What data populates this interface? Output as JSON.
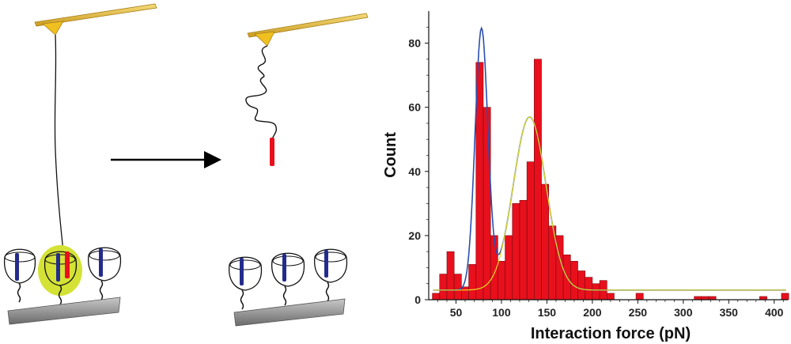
{
  "chart_data": {
    "type": "bar",
    "xlabel": "Interaction force (pN)",
    "ylabel": "Count",
    "xlim": [
      20,
      415
    ],
    "ylim": [
      0,
      90
    ],
    "x_ticks": [
      50,
      100,
      150,
      200,
      250,
      300,
      350,
      400
    ],
    "y_ticks": [
      0,
      20,
      40,
      60,
      80
    ],
    "bin_width": 8,
    "bars": [
      {
        "x": 24,
        "count": 2
      },
      {
        "x": 32,
        "count": 8
      },
      {
        "x": 40,
        "count": 15
      },
      {
        "x": 48,
        "count": 8
      },
      {
        "x": 56,
        "count": 4
      },
      {
        "x": 64,
        "count": 11
      },
      {
        "x": 72,
        "count": 74
      },
      {
        "x": 80,
        "count": 60
      },
      {
        "x": 88,
        "count": 20
      },
      {
        "x": 96,
        "count": 12
      },
      {
        "x": 104,
        "count": 20
      },
      {
        "x": 112,
        "count": 30
      },
      {
        "x": 120,
        "count": 31
      },
      {
        "x": 128,
        "count": 43
      },
      {
        "x": 136,
        "count": 75
      },
      {
        "x": 144,
        "count": 36
      },
      {
        "x": 152,
        "count": 23
      },
      {
        "x": 160,
        "count": 20
      },
      {
        "x": 168,
        "count": 14
      },
      {
        "x": 176,
        "count": 12
      },
      {
        "x": 184,
        "count": 9
      },
      {
        "x": 192,
        "count": 7
      },
      {
        "x": 200,
        "count": 5
      },
      {
        "x": 208,
        "count": 6
      },
      {
        "x": 216,
        "count": 2
      },
      {
        "x": 248,
        "count": 2
      },
      {
        "x": 312,
        "count": 1
      },
      {
        "x": 320,
        "count": 1
      },
      {
        "x": 328,
        "count": 1
      },
      {
        "x": 384,
        "count": 1
      },
      {
        "x": 408,
        "count": 2
      }
    ],
    "fits": [
      {
        "kind": "gaussian-sum",
        "color": "#2a4fb0",
        "baseline": 3,
        "peaks": [
          {
            "center": 78,
            "sigma": 7,
            "amplitude": 81
          },
          {
            "center": 131,
            "sigma": 18,
            "amplitude": 54
          }
        ]
      },
      {
        "kind": "gaussian",
        "color": "#e8e020",
        "baseline": 3,
        "peaks": [
          {
            "center": 131,
            "sigma": 18,
            "amplitude": 54
          }
        ]
      }
    ],
    "bar_color": "#e8101c"
  },
  "colors": {
    "cantilever": "#e9be3c",
    "tip": "#f0c020",
    "substrate": "#9a9a9a",
    "ligand": "#e8101c",
    "receptor": "#232c8c",
    "highlight": "#d4e236",
    "arrow": "#000000"
  }
}
